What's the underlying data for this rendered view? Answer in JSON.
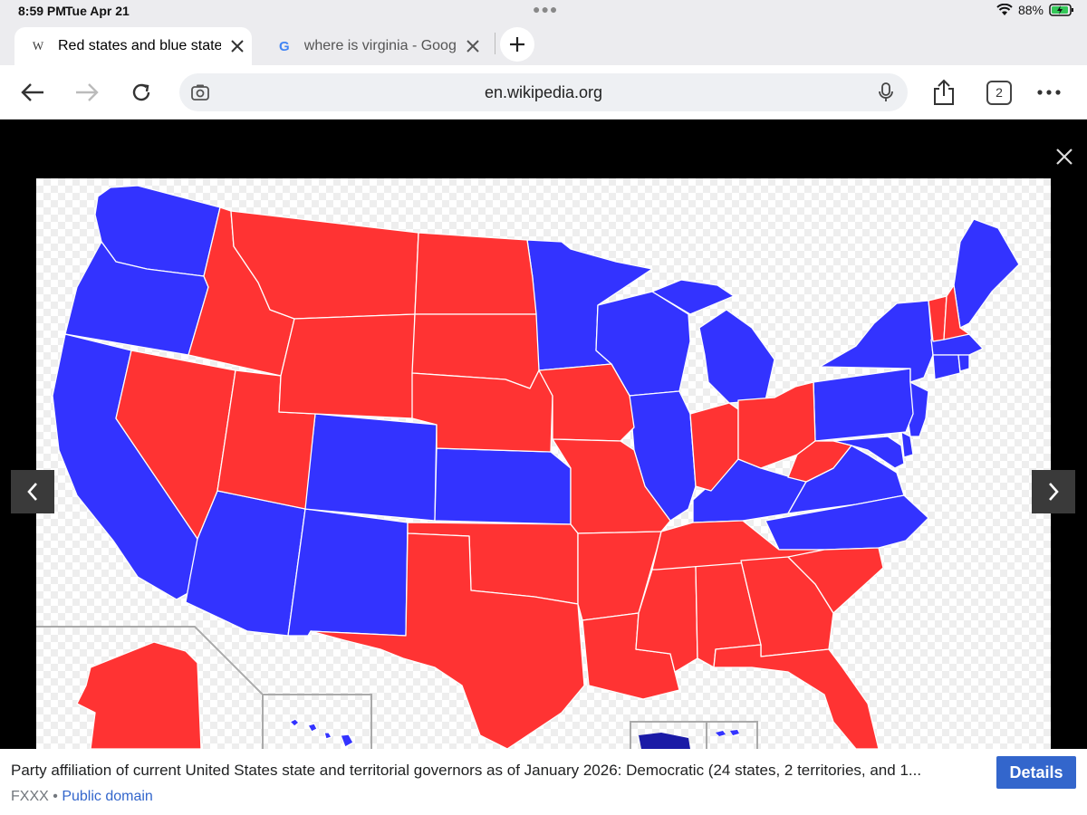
{
  "status": {
    "time": "8:59 PM",
    "date": "Tue Apr 21",
    "battery": "88%"
  },
  "tabs": [
    {
      "title": "Red states and blue states - Wikipedia",
      "favicon": "W",
      "active": true
    },
    {
      "title": "where is virginia - Google Search",
      "favicon": "G",
      "active": false
    }
  ],
  "toolbar": {
    "url": "en.wikipedia.org",
    "tab_count": "2"
  },
  "colors": {
    "democratic": "#3333ff",
    "republican": "#ff3333"
  },
  "map": {
    "democratic_states": [
      "WA",
      "OR",
      "CA",
      "AZ",
      "NM",
      "CO",
      "KS",
      "MN",
      "WI",
      "IL",
      "MI",
      "KY",
      "NC",
      "VA",
      "MD",
      "DE",
      "NJ",
      "PA",
      "NY",
      "CT",
      "RI",
      "MA",
      "ME",
      "HI"
    ],
    "republican_states": [
      "ID",
      "MT",
      "NV",
      "UT",
      "WY",
      "ND",
      "SD",
      "NE",
      "OK",
      "TX",
      "IA",
      "MO",
      "AR",
      "LA",
      "MS",
      "AL",
      "TN",
      "GA",
      "SC",
      "FL",
      "IN",
      "OH",
      "WV",
      "VT",
      "NH",
      "AK"
    ],
    "territories_democratic": [
      "PR",
      "VI"
    ]
  },
  "caption": {
    "text": "Party affiliation of current United States state and territorial governors as of January 2026:   Democratic (24 states, 2 territories, and 1...",
    "author": "FXXX",
    "separator": "•",
    "license": "Public domain",
    "details_label": "Details"
  }
}
